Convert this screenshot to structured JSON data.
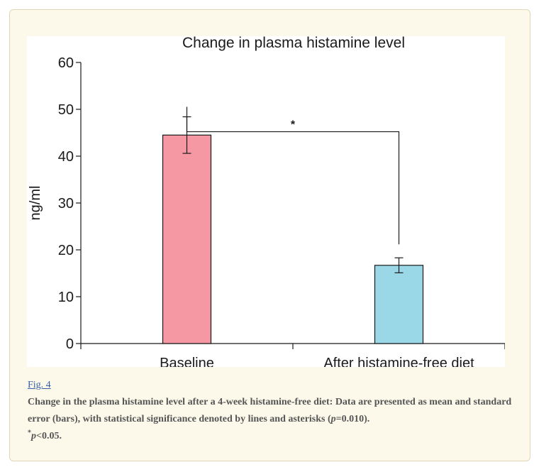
{
  "figure": {
    "link_label": "Fig. 4",
    "caption_part1": "Change in the plasma histamine level after a 4-week histamine-free diet: Data are presented as mean and standard error (bars), with statistical significance denoted by lines and asterisks (",
    "caption_p1": "p",
    "caption_part2": "=0.010).",
    "caption_star": "*",
    "caption_p2": "p",
    "caption_part3": "<0.05."
  },
  "chart_data": {
    "type": "bar",
    "title": "Change in plasma histamine level",
    "xlabel": "",
    "ylabel": "ng/ml",
    "ylim": [
      0,
      60
    ],
    "yticks": [
      "0",
      "10",
      "20",
      "30",
      "40",
      "50",
      "60"
    ],
    "categories": [
      "Baseline",
      "After histamine-free diet"
    ],
    "values": [
      44.5,
      16.7
    ],
    "errors": [
      3.9,
      1.6
    ],
    "bar_colors": [
      "#f598a3",
      "#9ad8e7"
    ],
    "significance": {
      "label": "*",
      "from": 0,
      "to": 1
    }
  }
}
